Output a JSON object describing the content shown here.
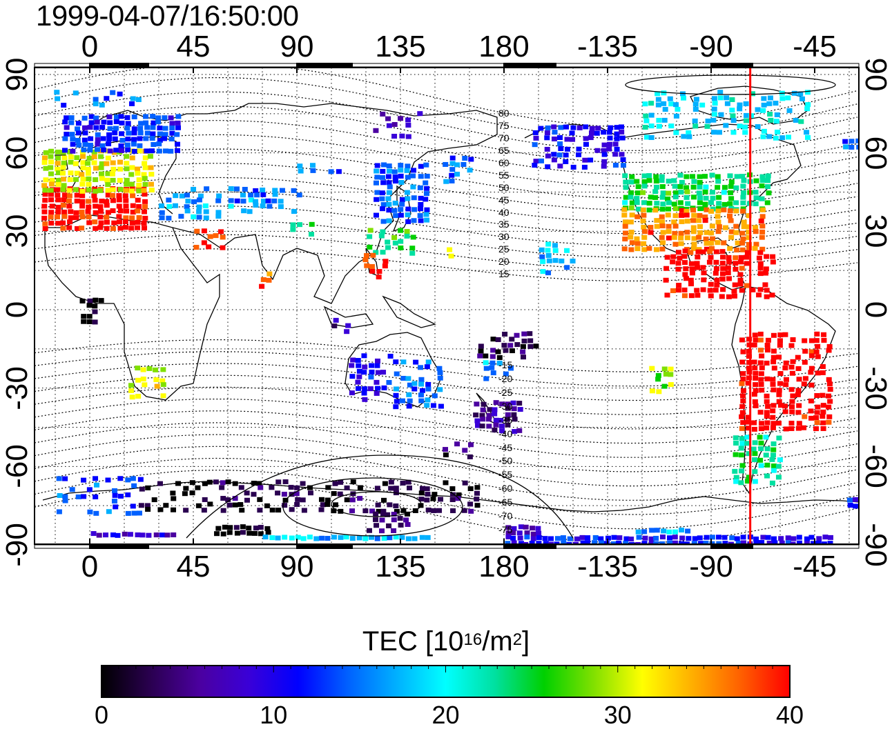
{
  "timestamp": "1999-04-07/16:50:00",
  "lon_ticks": [
    "0",
    "45",
    "90",
    "135",
    "180",
    "-135",
    "-90",
    "-45"
  ],
  "lat_ticks": [
    "90",
    "60",
    "30",
    "0",
    "-30",
    "-60",
    "-90"
  ],
  "mlat_labels": [
    "80",
    "75",
    "70",
    "65",
    "60",
    "55",
    "50",
    "45",
    "40",
    "35",
    "30",
    "25",
    "20",
    "15",
    "-15",
    "-20",
    "-25",
    "-30",
    "-35",
    "-40",
    "-45",
    "-50",
    "-55",
    "-60",
    "-65",
    "-70",
    "-75"
  ],
  "colorbar": {
    "title_main": "TEC  [10",
    "title_exp1": "16",
    "title_mid": "/m",
    "title_exp2": "2",
    "title_end": "]",
    "min": 0,
    "max": 40,
    "ticks": [
      "0",
      "10",
      "20",
      "30",
      "40"
    ],
    "colors": [
      "#000000",
      "#2a0050",
      "#4b00a0",
      "#3a00d8",
      "#0000ff",
      "#0060ff",
      "#00b0ff",
      "#00ffff",
      "#00e0a0",
      "#00d000",
      "#80e000",
      "#ffff00",
      "#ffb000",
      "#ff6000",
      "#ff0000"
    ]
  },
  "marker_line": {
    "color": "#ff0000",
    "longitude": -73
  }
}
